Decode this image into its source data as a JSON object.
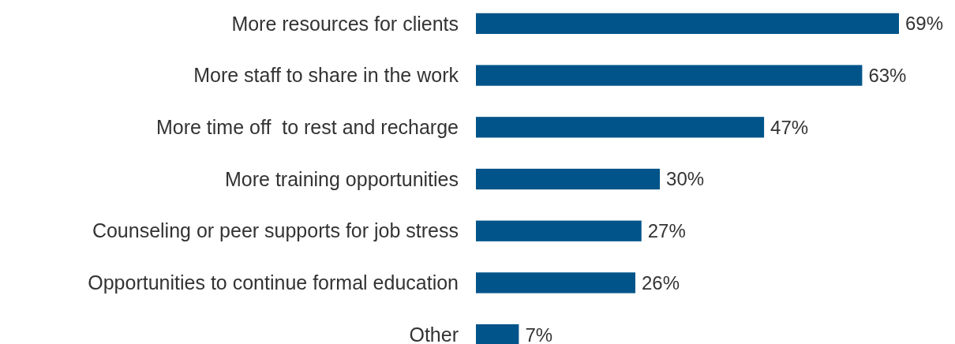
{
  "chart_data": {
    "type": "bar",
    "orientation": "horizontal",
    "categories": [
      "More resources for clients",
      "More staff to share in the work",
      "More time off  to rest and recharge",
      "More training opportunities",
      "Counseling or peer supports for job stress",
      "Opportunities to continue formal education",
      "Other"
    ],
    "values": [
      69,
      63,
      47,
      30,
      27,
      26,
      7
    ],
    "value_labels": [
      "69%",
      "63%",
      "47%",
      "30%",
      "27%",
      "26%",
      "7%"
    ],
    "color": "#00548a"
  }
}
